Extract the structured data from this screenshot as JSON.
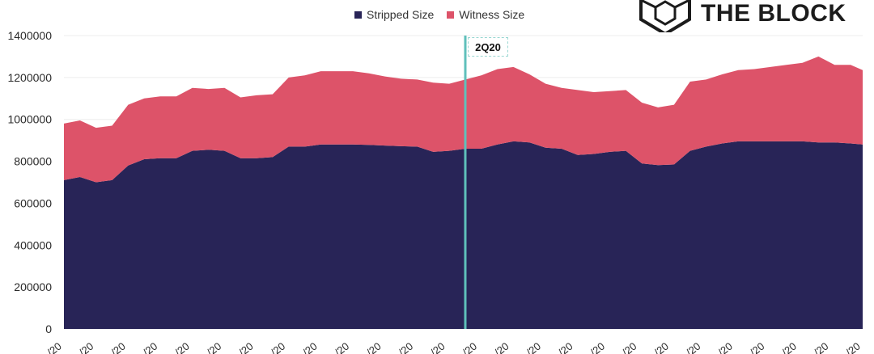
{
  "brand": {
    "name": "THE BLOCK"
  },
  "legend": {
    "items": [
      {
        "label": "Stripped Size",
        "color": "#282457"
      },
      {
        "label": "Witness Size",
        "color": "#dd5369"
      }
    ]
  },
  "marker": {
    "label": "2Q20",
    "color": "#5fc0bb"
  },
  "chart_data": {
    "type": "area",
    "stacked": true,
    "ylim": [
      0,
      1400000
    ],
    "yticks": [
      0,
      200000,
      400000,
      600000,
      800000,
      1000000,
      1200000,
      1400000
    ],
    "xtick_labels": [
      "/20",
      "/20",
      "/20",
      "/20",
      "/20",
      "/20",
      "/20",
      "/20",
      "/20",
      "/20",
      "/20",
      "/20",
      "/20",
      "/20",
      "/20",
      "/20",
      "/20",
      "/20",
      "/20",
      "/20",
      "/20",
      "/20",
      "/20",
      "/20",
      "/20",
      "/20"
    ],
    "x": [
      0,
      4,
      8,
      12,
      16,
      20,
      24,
      28,
      32,
      36,
      40,
      44,
      48,
      52,
      56,
      60,
      64,
      68,
      72,
      76,
      80,
      84,
      88,
      92,
      96,
      100,
      104,
      108,
      112,
      116,
      120,
      124,
      128,
      132,
      136,
      140,
      144,
      148,
      152,
      156,
      160,
      164,
      168,
      172,
      176,
      180,
      184,
      188,
      192,
      196,
      199
    ],
    "marker_x": 100,
    "series": [
      {
        "name": "Stripped Size",
        "color": "#282457",
        "values": [
          710000,
          725000,
          700000,
          710000,
          780000,
          810000,
          815000,
          815000,
          850000,
          855000,
          850000,
          815000,
          815000,
          820000,
          870000,
          870000,
          880000,
          880000,
          880000,
          878000,
          875000,
          872000,
          870000,
          845000,
          850000,
          860000,
          860000,
          880000,
          895000,
          890000,
          865000,
          860000,
          830000,
          835000,
          845000,
          850000,
          790000,
          782000,
          785000,
          850000,
          870000,
          885000,
          895000,
          895000,
          895000,
          895000,
          895000,
          890000,
          890000,
          885000,
          880000
        ]
      },
      {
        "name": "Witness Size",
        "color": "#dd5369",
        "values": [
          270000,
          270000,
          260000,
          260000,
          290000,
          290000,
          295000,
          295000,
          300000,
          290000,
          300000,
          290000,
          300000,
          300000,
          330000,
          340000,
          350000,
          350000,
          350000,
          342000,
          330000,
          322000,
          320000,
          330000,
          320000,
          330000,
          350000,
          360000,
          355000,
          325000,
          305000,
          290000,
          310000,
          295000,
          290000,
          290000,
          290000,
          275000,
          285000,
          330000,
          320000,
          330000,
          340000,
          345000,
          355000,
          365000,
          375000,
          410000,
          370000,
          375000,
          355000
        ]
      }
    ]
  }
}
